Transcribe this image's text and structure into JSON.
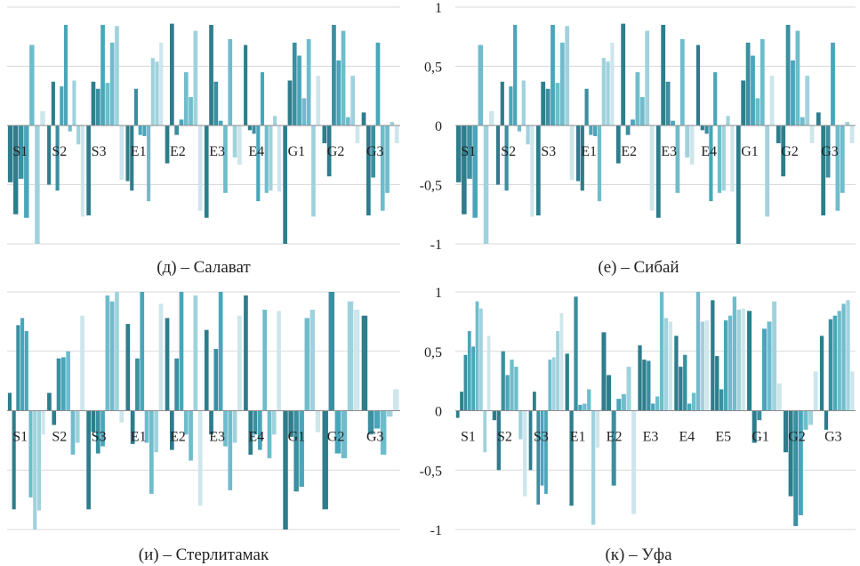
{
  "palette": [
    "#2e7d8c",
    "#3a8fa0",
    "#49a6ba",
    "#6fbccc",
    "#9fd2dd",
    "#cde6ec"
  ],
  "chart_data": [
    {
      "type": "bar",
      "caption": "(д) – Салават",
      "ylim": [
        -1,
        1
      ],
      "yticks": [
        "1",
        "0,5",
        "0",
        "-0,5",
        "-1"
      ],
      "show_axis_labels": false,
      "categories": [
        "S1",
        "S2",
        "S3",
        "E1",
        "E2",
        "E3",
        "E4",
        "G1",
        "G2",
        "G3"
      ],
      "groups": [
        [
          -0.48,
          -0.75,
          -0.45,
          -0.78,
          0.68,
          -1.0,
          0.12
        ],
        [
          -0.5,
          0.37,
          -0.55,
          0.33,
          0.85,
          -0.05,
          0.38,
          -0.16,
          -0.77
        ],
        [
          -0.76,
          0.37,
          0.31,
          0.85,
          0.36,
          0.7,
          0.84,
          -0.46
        ],
        [
          -0.47,
          -0.55,
          0.31,
          -0.08,
          -0.09,
          -0.64,
          0.57,
          0.54,
          0.7
        ],
        [
          -0.32,
          0.86,
          -0.08,
          0.05,
          0.45,
          0.24,
          0.8,
          -0.72
        ],
        [
          -0.78,
          0.85,
          0.37,
          0.04,
          -0.57,
          0.73,
          -0.27,
          -0.33
        ],
        [
          0.68,
          -0.04,
          -0.07,
          -0.64,
          0.45,
          -0.57,
          -0.55,
          0.08,
          -0.56
        ],
        [
          -1.0,
          0.38,
          0.7,
          0.59,
          0.23,
          0.73,
          -0.77,
          0.42
        ],
        [
          -0.15,
          -0.43,
          0.85,
          0.55,
          0.8,
          0.07,
          0.42,
          -0.15
        ],
        [
          0.11,
          -0.76,
          -0.44,
          0.7,
          -0.72,
          -0.57,
          0.03,
          -0.15
        ]
      ]
    },
    {
      "type": "bar",
      "caption": "(е) – Сибай",
      "ylim": [
        -1,
        1
      ],
      "yticks": [
        "1",
        "0,5",
        "0",
        "-0,5",
        "-1"
      ],
      "show_axis_labels": true,
      "categories": [
        "S1",
        "S2",
        "S3",
        "E1",
        "E2",
        "E3",
        "E4",
        "G1",
        "G2",
        "G3"
      ],
      "groups": [
        [
          -0.48,
          -0.75,
          -0.45,
          -0.78,
          0.68,
          -1.0,
          0.12
        ],
        [
          -0.5,
          0.37,
          -0.55,
          0.33,
          0.85,
          -0.05,
          0.38,
          -0.16,
          -0.77
        ],
        [
          -0.76,
          0.37,
          0.31,
          0.85,
          0.36,
          0.7,
          0.84,
          -0.46
        ],
        [
          -0.47,
          -0.55,
          0.31,
          -0.08,
          -0.09,
          -0.64,
          0.57,
          0.54,
          0.7
        ],
        [
          -0.32,
          0.86,
          -0.08,
          0.05,
          0.45,
          0.24,
          0.8,
          -0.72
        ],
        [
          -0.78,
          0.85,
          0.37,
          0.04,
          -0.57,
          0.73,
          -0.27,
          -0.33
        ],
        [
          0.68,
          -0.04,
          -0.07,
          -0.64,
          0.45,
          -0.57,
          -0.55,
          0.08,
          -0.56
        ],
        [
          -1.0,
          0.38,
          0.7,
          0.59,
          0.23,
          0.73,
          -0.77,
          0.42
        ],
        [
          -0.15,
          -0.43,
          0.85,
          0.55,
          0.8,
          0.07,
          0.42,
          -0.15
        ],
        [
          0.11,
          -0.76,
          -0.44,
          0.7,
          -0.72,
          -0.57,
          0.03,
          -0.15
        ]
      ]
    },
    {
      "type": "bar",
      "caption": "(и) – Стерлитамак",
      "ylim": [
        -1,
        1
      ],
      "yticks": [
        "1",
        "0,5",
        "0",
        "-0,5",
        "-1"
      ],
      "show_axis_labels": false,
      "categories": [
        "S1",
        "S2",
        "S3",
        "E1",
        "E2",
        "E3",
        "E4",
        "G1",
        "G2",
        "G3"
      ],
      "groups": [
        [
          0.15,
          -0.83,
          0.72,
          0.78,
          0.67,
          -0.73,
          -1.0,
          -0.84,
          -0.2
        ],
        [
          0.15,
          -0.12,
          0.44,
          0.45,
          0.5,
          -0.37,
          -0.27,
          0.8
        ],
        [
          -0.83,
          -0.18,
          -0.36,
          -0.3,
          0.97,
          0.92,
          1.0,
          -0.1
        ],
        [
          0.73,
          -0.28,
          0.44,
          1.0,
          -0.27,
          -0.7,
          -0.35,
          0.9
        ],
        [
          0.78,
          -0.33,
          0.44,
          1.0,
          -0.2,
          -0.42,
          0.97,
          -0.8
        ],
        [
          0.68,
          -0.2,
          0.52,
          1.0,
          -0.3,
          -0.67,
          -0.27,
          0.8
        ],
        [
          0.97,
          -0.37,
          -0.2,
          -0.33,
          0.85,
          -0.4,
          -0.2,
          0.84
        ],
        [
          -1.0,
          -0.22,
          -0.68,
          -0.64,
          0.78,
          0.85,
          -0.18
        ],
        [
          -0.83,
          1.0,
          -0.36,
          -0.4,
          0.92,
          0.85
        ],
        [
          0.8,
          -0.2,
          -0.15,
          -0.37,
          -0.05,
          0.18
        ]
      ]
    },
    {
      "type": "bar",
      "caption": "(к) – Уфа",
      "ylim": [
        -1,
        1
      ],
      "yticks": [
        "1",
        "0,5",
        "0",
        "-0,5",
        "-1"
      ],
      "show_axis_labels": true,
      "categories": [
        "S1",
        "S2",
        "S3",
        "E1",
        "E2",
        "E3",
        "E4",
        "E5",
        "G1",
        "G2",
        "G3"
      ],
      "groups": [
        [
          -0.06,
          0.16,
          0.47,
          0.67,
          0.54,
          0.92,
          0.86,
          -0.35,
          0.63
        ],
        [
          -0.08,
          -0.5,
          0.5,
          0.3,
          0.43,
          0.37,
          -0.24,
          -0.72
        ],
        [
          -0.5,
          0.16,
          -0.79,
          -0.63,
          -0.7,
          0.43,
          0.45,
          0.67,
          0.82
        ],
        [
          0.48,
          -0.8,
          0.96,
          0.05,
          0.06,
          0.18,
          -0.96,
          -0.31
        ],
        [
          0.66,
          0.3,
          -0.63,
          0.1,
          0.14,
          0.37,
          -0.87
        ],
        [
          0.55,
          0.43,
          0.42,
          0.06,
          0.12,
          1.0,
          0.78,
          0.75
        ],
        [
          0.63,
          0.37,
          0.47,
          0.06,
          0.15,
          1.0,
          0.75,
          0.76
        ],
        [
          0.93,
          0.46,
          0.18,
          0.76,
          0.8,
          0.96,
          0.85,
          0.86
        ],
        [
          0.84,
          -0.27,
          -0.08,
          0.69,
          0.75,
          0.92,
          0.23
        ],
        [
          -0.35,
          -0.72,
          -0.97,
          -0.88,
          -0.16,
          -0.12,
          0.33
        ],
        [
          0.63,
          -0.16,
          0.77,
          0.8,
          0.84,
          0.9,
          0.93,
          0.33
        ]
      ]
    }
  ]
}
